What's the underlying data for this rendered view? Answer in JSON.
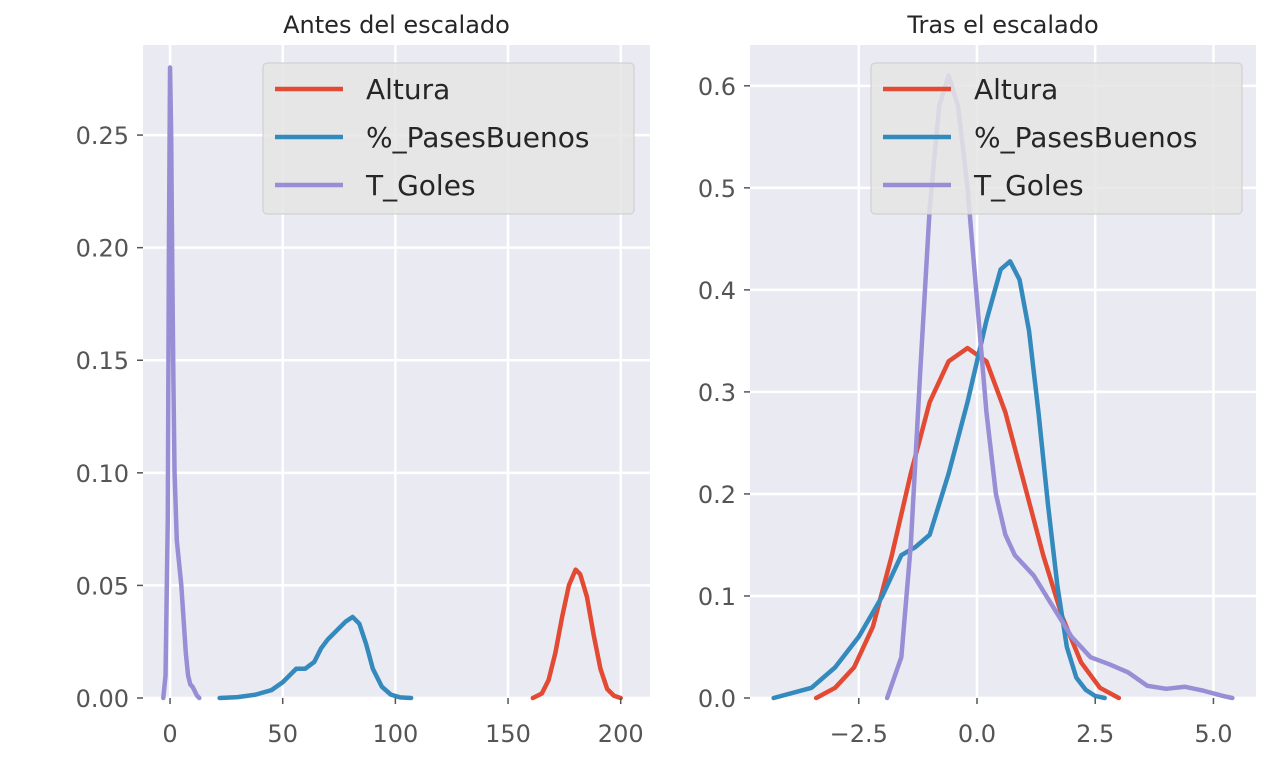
{
  "chart_data": [
    {
      "type": "line",
      "title": "Antes del escalado",
      "xlabel": "",
      "ylabel": "",
      "xlim": [
        -12,
        213
      ],
      "ylim": [
        0,
        0.29
      ],
      "xticks": [
        0,
        50,
        100,
        150,
        200
      ],
      "xtick_labels": [
        "0",
        "50",
        "100",
        "150",
        "200"
      ],
      "yticks": [
        0,
        0.05,
        0.1,
        0.15,
        0.2,
        0.25
      ],
      "ytick_labels": [
        "0.00",
        "0.05",
        "0.10",
        "0.15",
        "0.20",
        "0.25"
      ],
      "grid": true,
      "legend_position": "upper right",
      "series": [
        {
          "name": "Altura",
          "color": "#E24A33",
          "x": [
            161,
            165,
            168,
            171,
            174,
            177,
            180,
            182,
            185,
            188,
            191,
            194,
            197,
            200
          ],
          "y": [
            0.0,
            0.002,
            0.008,
            0.02,
            0.036,
            0.05,
            0.057,
            0.055,
            0.045,
            0.028,
            0.013,
            0.004,
            0.001,
            0.0
          ]
        },
        {
          "name": "%_PasesBuenos",
          "color": "#348ABD",
          "x": [
            22,
            30,
            38,
            45,
            50,
            53,
            56,
            60,
            64,
            67,
            70,
            74,
            78,
            81,
            84,
            87,
            90,
            94,
            98,
            102,
            107
          ],
          "y": [
            0.0,
            0.0004,
            0.0015,
            0.0035,
            0.007,
            0.01,
            0.013,
            0.013,
            0.016,
            0.022,
            0.026,
            0.03,
            0.034,
            0.036,
            0.033,
            0.024,
            0.013,
            0.005,
            0.0015,
            0.0003,
            0.0
          ]
        },
        {
          "name": "T_Goles",
          "color": "#988ED5",
          "x": [
            -3,
            -2,
            -1,
            -0.5,
            0,
            0.5,
            1,
            1.5,
            2,
            3,
            4,
            5,
            6,
            7,
            8,
            9,
            10,
            11,
            12,
            13
          ],
          "y": [
            0.0,
            0.01,
            0.08,
            0.2,
            0.28,
            0.25,
            0.19,
            0.14,
            0.1,
            0.07,
            0.06,
            0.05,
            0.035,
            0.02,
            0.01,
            0.006,
            0.005,
            0.003,
            0.001,
            0.0
          ]
        }
      ]
    },
    {
      "type": "line",
      "title": "Tras el escalado",
      "xlabel": "",
      "ylabel": "",
      "xlim": [
        -4.8,
        5.9
      ],
      "ylim": [
        0,
        0.64
      ],
      "xticks": [
        -2.5,
        0.0,
        2.5,
        5.0
      ],
      "xtick_labels": [
        "−2.5",
        "0.0",
        "2.5",
        "5.0"
      ],
      "yticks": [
        0,
        0.1,
        0.2,
        0.3,
        0.4,
        0.5,
        0.6
      ],
      "ytick_labels": [
        "0.0",
        "0.1",
        "0.2",
        "0.3",
        "0.4",
        "0.5",
        "0.6"
      ],
      "grid": true,
      "legend_position": "upper right",
      "series": [
        {
          "name": "Altura",
          "color": "#E24A33",
          "x": [
            -3.4,
            -3.0,
            -2.6,
            -2.2,
            -1.8,
            -1.4,
            -1.0,
            -0.6,
            -0.2,
            0.2,
            0.6,
            1.0,
            1.4,
            1.8,
            2.2,
            2.6,
            3.0
          ],
          "y": [
            0.0,
            0.01,
            0.03,
            0.07,
            0.14,
            0.22,
            0.29,
            0.33,
            0.343,
            0.33,
            0.28,
            0.21,
            0.14,
            0.08,
            0.035,
            0.01,
            0.0
          ]
        },
        {
          "name": "%_PasesBuenos",
          "color": "#348ABD",
          "x": [
            -4.3,
            -3.5,
            -3.0,
            -2.5,
            -2.0,
            -1.6,
            -1.3,
            -1.0,
            -0.6,
            -0.2,
            0.2,
            0.5,
            0.7,
            0.9,
            1.1,
            1.3,
            1.5,
            1.7,
            1.9,
            2.1,
            2.3,
            2.5,
            2.7
          ],
          "y": [
            0.0,
            0.01,
            0.03,
            0.06,
            0.1,
            0.14,
            0.148,
            0.16,
            0.22,
            0.29,
            0.37,
            0.42,
            0.428,
            0.41,
            0.36,
            0.28,
            0.19,
            0.11,
            0.05,
            0.02,
            0.008,
            0.002,
            0.0
          ]
        },
        {
          "name": "T_Goles",
          "color": "#988ED5",
          "x": [
            -1.9,
            -1.6,
            -1.4,
            -1.2,
            -1.0,
            -0.8,
            -0.6,
            -0.4,
            -0.2,
            0.0,
            0.2,
            0.4,
            0.6,
            0.8,
            1.2,
            1.6,
            2.0,
            2.4,
            2.8,
            3.2,
            3.6,
            4.0,
            4.4,
            4.8,
            5.2,
            5.4
          ],
          "y": [
            0.0,
            0.04,
            0.15,
            0.32,
            0.48,
            0.58,
            0.61,
            0.58,
            0.5,
            0.39,
            0.28,
            0.2,
            0.16,
            0.14,
            0.12,
            0.09,
            0.06,
            0.04,
            0.033,
            0.025,
            0.012,
            0.009,
            0.011,
            0.007,
            0.002,
            0.0
          ]
        }
      ]
    }
  ]
}
